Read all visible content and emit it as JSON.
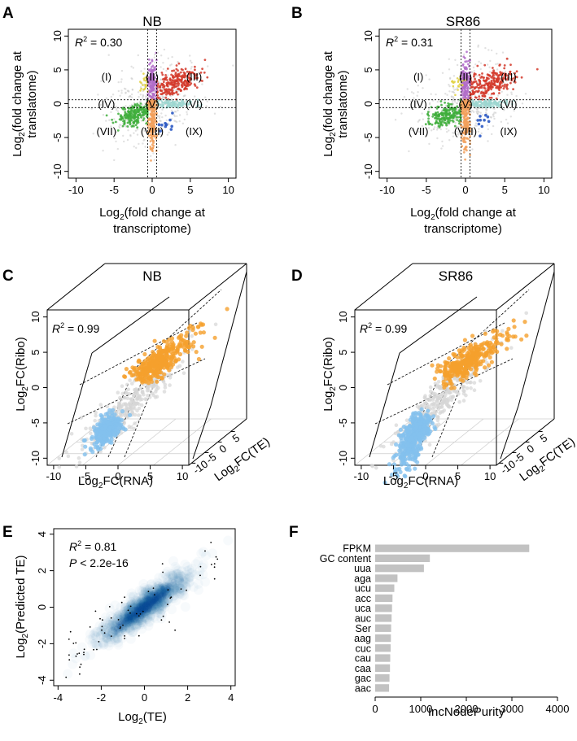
{
  "colors": {
    "grey": "#c8c8c8",
    "red": "#d33a2c",
    "purple": "#b26cc9",
    "green": "#3fae3c",
    "orange": "#f2a05c",
    "teal": "#9cd6d0",
    "blue": "#1f4fbf",
    "yellow": "#e0d040",
    "ribo_orange": "#f5a02d",
    "ribo_blue": "#83c1ee",
    "density": "#08519c",
    "bar": "#c2c2c2"
  },
  "chart_data": [
    {
      "id": "A",
      "panel_label": "A",
      "type": "scatter",
      "title": "NB",
      "xlabel_line1": "Log",
      "xlabel_sub": "2",
      "xlabel_rest": "(fold change at",
      "xlabel_line2": "transcriptome)",
      "ylabel_line1": "Log",
      "ylabel_sub": "2",
      "ylabel_rest": "(fold change at",
      "ylabel_line2": "translatome)",
      "xlim": [
        -11,
        11
      ],
      "ylim": [
        -11,
        11
      ],
      "xticks": [
        -10,
        -5,
        0,
        5,
        10
      ],
      "yticks": [
        -10,
        -5,
        0,
        5,
        10
      ],
      "r2_label": "R",
      "r2_sup": "2",
      "r2_value": " = 0.30",
      "thresholds": [
        -0.58,
        0.58
      ],
      "regions": [
        "(I)",
        "(II)",
        "(III)",
        "(IV)",
        "(V)",
        "(VI)",
        "(VII)",
        "(VIII)",
        "(IX)"
      ],
      "region_positions": [
        [
          -6,
          4
        ],
        [
          0,
          4
        ],
        [
          5.5,
          4
        ],
        [
          -6,
          0
        ],
        [
          0,
          0
        ],
        [
          5.5,
          0
        ],
        [
          -6,
          -4
        ],
        [
          0,
          -4
        ],
        [
          5.5,
          -4
        ]
      ]
    },
    {
      "id": "B",
      "panel_label": "B",
      "type": "scatter",
      "title": "SR86",
      "xlabel_line1": "Log",
      "xlabel_sub": "2",
      "xlabel_rest": "(fold change at",
      "xlabel_line2": "transcriptome)",
      "ylabel_line1": "Log",
      "ylabel_sub": "2",
      "ylabel_rest": "(fold change at",
      "ylabel_line2": "translatome)",
      "xlim": [
        -11,
        11
      ],
      "ylim": [
        -11,
        11
      ],
      "xticks": [
        -10,
        -5,
        0,
        5,
        10
      ],
      "yticks": [
        -10,
        -5,
        0,
        5,
        10
      ],
      "r2_label": "R",
      "r2_sup": "2",
      "r2_value": " = 0.31",
      "thresholds": [
        -0.58,
        0.58
      ],
      "regions": [
        "(I)",
        "(II)",
        "(III)",
        "(IV)",
        "(V)",
        "(VI)",
        "(VII)",
        "(VIII)",
        "(IX)"
      ],
      "region_positions": [
        [
          -6,
          4
        ],
        [
          0,
          4
        ],
        [
          5.5,
          4
        ],
        [
          -6,
          0
        ],
        [
          0,
          0
        ],
        [
          5.5,
          0
        ],
        [
          -6,
          -4
        ],
        [
          0,
          -4
        ],
        [
          5.5,
          -4
        ]
      ]
    },
    {
      "id": "C",
      "panel_label": "C",
      "type": "scatter",
      "title": "NB",
      "xlabel_main": "Log",
      "xlabel_sub": "2",
      "xlabel_rest": "FC(RNA)",
      "ylabel_main": "Log",
      "ylabel_sub": "2",
      "ylabel_rest": "FC(Ribo)",
      "zlabel_main": "Log",
      "zlabel_sub": "2",
      "zlabel_rest": "FC(TE)",
      "xticks": [
        -10,
        -5,
        0,
        5,
        10
      ],
      "yticks": [
        -10,
        -5,
        0,
        5,
        10
      ],
      "zticks": [
        -10,
        -5,
        0,
        5
      ],
      "r2_label": "R",
      "r2_sup": "2",
      "r2_value": " = 0.99"
    },
    {
      "id": "D",
      "panel_label": "D",
      "type": "scatter",
      "title": "SR86",
      "xlabel_main": "Log",
      "xlabel_sub": "2",
      "xlabel_rest": "FC(RNA)",
      "ylabel_main": "Log",
      "ylabel_sub": "2",
      "ylabel_rest": "FC(Ribo)",
      "zlabel_main": "Log",
      "zlabel_sub": "2",
      "zlabel_rest": "FC(TE)",
      "xticks": [
        -10,
        -5,
        0,
        5,
        10
      ],
      "yticks": [
        -10,
        -5,
        0,
        5,
        10
      ],
      "zticks": [
        -10,
        -5,
        0,
        5
      ],
      "r2_label": "R",
      "r2_sup": "2",
      "r2_value": " = 0.99"
    },
    {
      "id": "E",
      "panel_label": "E",
      "type": "scatter",
      "title": "",
      "xlabel_main": "Log",
      "xlabel_sub": "2",
      "xlabel_rest": "(TE)",
      "ylabel_main": "Log",
      "ylabel_sub": "2",
      "ylabel_rest": "(Predicted TE)",
      "xlim": [
        -4.2,
        4.2
      ],
      "ylim": [
        -4.3,
        4.3
      ],
      "xticks": [
        -4,
        -2,
        0,
        2,
        4
      ],
      "yticks": [
        -4,
        -2,
        0,
        2,
        4
      ],
      "r2_label": "R",
      "r2_sup": "2",
      "r2_value": " = 0.81",
      "p_label": "P",
      "p_value": " < 2.2e-16"
    },
    {
      "id": "F",
      "panel_label": "F",
      "type": "bar",
      "title": "",
      "xlabel": "IncNodePurity",
      "xlim": [
        0,
        4000
      ],
      "xticks": [
        0,
        1000,
        2000,
        3000,
        4000
      ],
      "categories": [
        "FPKM",
        "GC content",
        "uua",
        "aga",
        "ucu",
        "acc",
        "uca",
        "auc",
        "Ser",
        "aag",
        "cuc",
        "cau",
        "caa",
        "gac",
        "aac"
      ],
      "values": [
        3380,
        1200,
        1070,
        490,
        420,
        380,
        370,
        360,
        350,
        345,
        340,
        330,
        325,
        315,
        305
      ]
    }
  ]
}
